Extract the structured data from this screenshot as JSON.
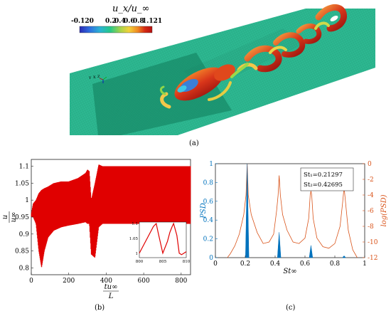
{
  "panel_a": {
    "caption": "(a)",
    "colorbar_title": "u_x/u_∞",
    "colorbar_ticks": [
      "-0.120",
      "0.2",
      "0.4",
      "0.6",
      "0.8",
      "1.121"
    ],
    "colorbar_colors": [
      "#2b2bb5",
      "#2f6fe0",
      "#2bb3d4",
      "#25c88a",
      "#a5d34a",
      "#f2d23a",
      "#f08a22",
      "#d42a14",
      "#b51010"
    ],
    "axis_triad": [
      "Y",
      "X",
      "Z"
    ],
    "ground_color": "#2db891"
  },
  "panel_b": {
    "caption": "(b)",
    "colors": {
      "signal": "#e00000"
    },
    "inset": {
      "x_ticks": [
        "800",
        "805",
        "810"
      ],
      "y_ticks": [
        "1.1",
        "1.05",
        "1"
      ]
    }
  },
  "panel_c": {
    "caption": "(c)",
    "legend_lines": [
      "St₁=0.21297",
      "St₂=0.42695"
    ],
    "colors": {
      "psd": "#0072bd",
      "log_psd": "#d95319"
    }
  },
  "chart_data": [
    {
      "type": "line",
      "panel": "b",
      "xlabel": "tu∞/L",
      "ylabel": "u_x/u∞",
      "xlim": [
        0,
        850
      ],
      "ylim": [
        0.78,
        1.12
      ],
      "x_ticks": [
        0,
        200,
        400,
        600,
        800
      ],
      "y_ticks": [
        0.8,
        0.85,
        0.9,
        0.95,
        1,
        1.05,
        1.1
      ],
      "envelope": {
        "t": [
          0,
          10,
          25,
          40,
          55,
          70,
          90,
          120,
          160,
          200,
          250,
          290,
          300,
          310,
          320,
          340,
          360,
          380,
          400,
          500,
          600,
          700,
          800,
          850
        ],
        "upper": [
          0.96,
          0.99,
          1.0,
          1.02,
          1.03,
          1.035,
          1.04,
          1.05,
          1.055,
          1.055,
          1.065,
          1.08,
          1.09,
          1.085,
          1.0,
          1.05,
          1.105,
          1.1,
          1.1,
          1.1,
          1.1,
          1.1,
          1.1,
          1.1
        ],
        "lower": [
          0.95,
          0.95,
          0.93,
          0.85,
          0.8,
          0.85,
          0.89,
          0.91,
          0.92,
          0.925,
          0.93,
          0.935,
          0.93,
          0.93,
          0.84,
          0.83,
          0.92,
          0.93,
          0.93,
          0.93,
          0.93,
          0.93,
          0.93,
          0.93
        ]
      },
      "inset": {
        "xlim": [
          800,
          810
        ],
        "ylim": [
          0.985,
          1.105
        ],
        "x": [
          800,
          801,
          802,
          803,
          803.6,
          804,
          805,
          806,
          806.5,
          807,
          807.3,
          808,
          808.5,
          809,
          809.5,
          810
        ],
        "y": [
          1.0,
          1.03,
          1.06,
          1.09,
          1.1,
          1.07,
          1.0,
          1.04,
          1.07,
          1.09,
          1.1,
          1.06,
          1.0,
          0.995,
          1.0,
          1.005
        ]
      }
    },
    {
      "type": "line",
      "panel": "c",
      "xlabel": "St∞",
      "ylabel": "PSD",
      "ylabel_right": "log(PSD)",
      "xlim": [
        0,
        1
      ],
      "ylim": [
        0,
        1
      ],
      "ylim_right": [
        -12,
        0
      ],
      "x_ticks": [
        0,
        0.2,
        0.4,
        0.6,
        0.8,
        1
      ],
      "y_ticks": [
        0,
        0.2,
        0.4,
        0.6,
        0.8,
        1
      ],
      "y_ticks_right": [
        0,
        -2,
        -4,
        -6,
        -8,
        -10,
        -12
      ],
      "psd_peaks": [
        {
          "x": 0.213,
          "y": 1.0
        },
        {
          "x": 0.427,
          "y": 0.27
        },
        {
          "x": 0.64,
          "y": 0.13
        },
        {
          "x": 0.862,
          "y": 0.02
        }
      ],
      "log_psd": {
        "x": [
          0.08,
          0.1,
          0.13,
          0.16,
          0.19,
          0.205,
          0.213,
          0.22,
          0.24,
          0.28,
          0.32,
          0.36,
          0.39,
          0.41,
          0.42,
          0.427,
          0.435,
          0.45,
          0.48,
          0.52,
          0.56,
          0.6,
          0.625,
          0.635,
          0.64,
          0.645,
          0.655,
          0.68,
          0.72,
          0.76,
          0.8,
          0.835,
          0.852,
          0.862,
          0.872,
          0.89,
          0.92,
          0.95
        ],
        "y": [
          -12,
          -11.5,
          -10.5,
          -9,
          -6.5,
          -4,
          0,
          -4,
          -6.5,
          -8.8,
          -10.2,
          -10,
          -9,
          -6,
          -4,
          -1.5,
          -4,
          -6.5,
          -8.5,
          -10,
          -10.2,
          -9.5,
          -7,
          -4,
          -3.5,
          -4,
          -7,
          -9.5,
          -10.6,
          -10.8,
          -10.2,
          -8,
          -5,
          -3,
          -5,
          -8.5,
          -11,
          -12
        ]
      }
    }
  ]
}
